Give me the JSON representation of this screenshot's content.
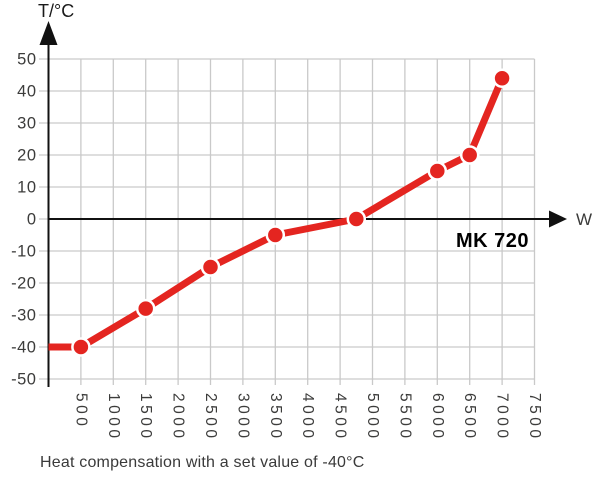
{
  "colors": {
    "line": "#e42520",
    "marker": "#e42520",
    "marker_ring": "#ffffff",
    "grid": "#c9c9c9",
    "axis": "#111111",
    "text": "#3c3c3b",
    "background": "#ffffff"
  },
  "chart_data": {
    "type": "line",
    "title": "",
    "xlabel": "W",
    "ylabel": "T/°C",
    "caption": "Heat compensation with a set value of -40°C",
    "xlim": [
      0,
      7500
    ],
    "ylim": [
      -50,
      50
    ],
    "grid": true,
    "legend_position": "none",
    "x_ticks": [
      500,
      1000,
      1500,
      2000,
      2500,
      3000,
      3500,
      4000,
      4500,
      5000,
      5500,
      6000,
      6500,
      7000,
      7500
    ],
    "y_ticks": [
      50,
      40,
      30,
      20,
      10,
      0,
      -10,
      -20,
      -30,
      -40,
      -50
    ],
    "series": [
      {
        "name": "MK 720",
        "line_points": [
          [
            0,
            -40
          ],
          [
            500,
            -40
          ],
          [
            1500,
            -28
          ],
          [
            2500,
            -15
          ],
          [
            3500,
            -5
          ],
          [
            4750,
            0
          ],
          [
            6000,
            15
          ],
          [
            6500,
            20
          ],
          [
            7000,
            44
          ]
        ],
        "marker_points": [
          [
            500,
            -40
          ],
          [
            1500,
            -28
          ],
          [
            2500,
            -15
          ],
          [
            3500,
            -5
          ],
          [
            4750,
            0
          ],
          [
            6000,
            15
          ],
          [
            6500,
            20
          ],
          [
            7000,
            44
          ]
        ]
      }
    ]
  }
}
